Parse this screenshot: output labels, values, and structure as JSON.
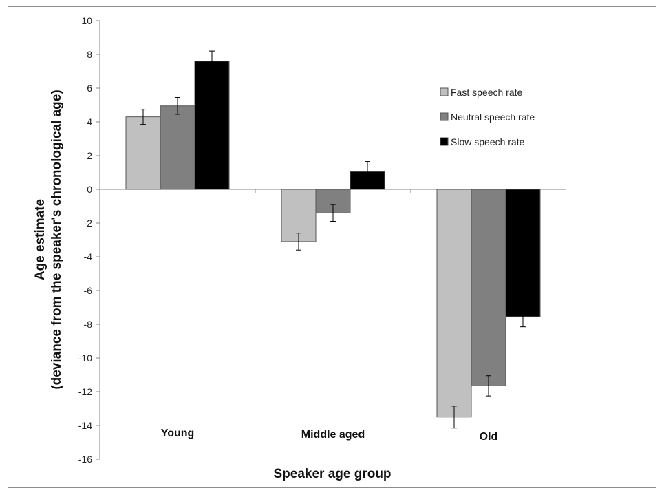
{
  "chart_data": {
    "type": "bar",
    "categories": [
      "Young",
      "Middle aged",
      "Old"
    ],
    "series": [
      {
        "name": "Fast speech rate",
        "values": [
          4.3,
          -3.1,
          -13.5
        ],
        "errors": [
          0.45,
          0.5,
          0.65
        ],
        "color": "#c0c0c0"
      },
      {
        "name": "Neutral speech rate",
        "values": [
          4.95,
          -1.4,
          -11.65
        ],
        "errors": [
          0.5,
          0.5,
          0.6
        ],
        "color": "#808080"
      },
      {
        "name": "Slow speech rate",
        "values": [
          7.6,
          1.05,
          -7.55
        ],
        "errors": [
          0.6,
          0.6,
          0.6
        ],
        "color": "#000000"
      }
    ],
    "xlabel": "Speaker age group",
    "ylabel": "Age estimate",
    "ylabel_line2": "(deviance from the speaker's chronological age)",
    "ylim": [
      -16,
      10
    ],
    "yticks": [
      10,
      8,
      6,
      4,
      2,
      0,
      -2,
      -4,
      -6,
      -8,
      -10,
      -12,
      -14,
      -16
    ],
    "grid": false,
    "legend_position": "top-right"
  }
}
